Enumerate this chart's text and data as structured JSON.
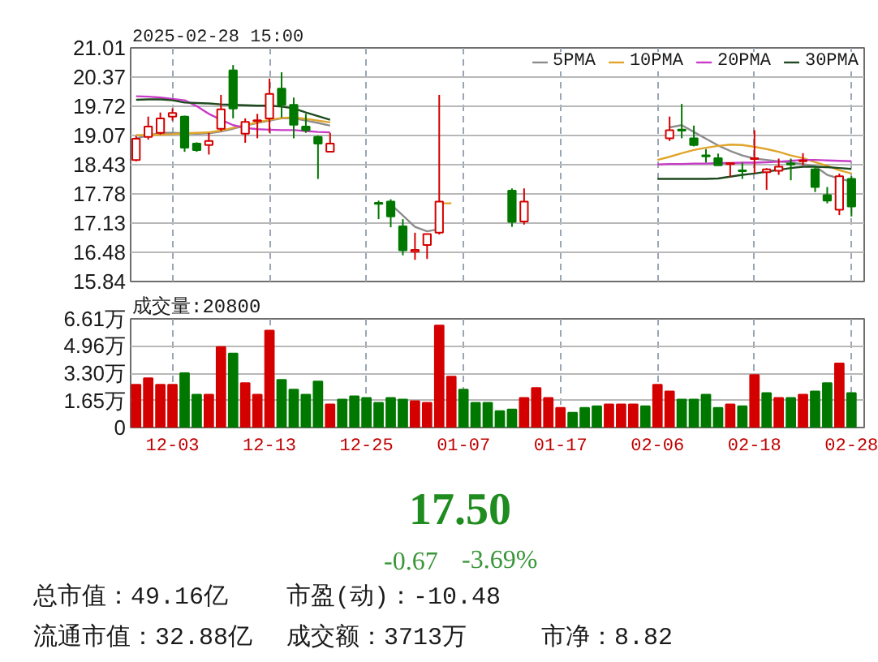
{
  "chart_data": [
    {
      "type": "candlestick",
      "title": "2025-02-28 15:00",
      "categories": [
        null,
        null,
        null,
        null,
        null,
        null,
        null,
        null,
        null,
        null,
        null,
        null,
        null,
        null,
        null,
        null,
        null,
        null,
        null,
        null,
        null,
        null,
        null,
        null,
        null,
        null,
        null,
        null,
        null,
        null,
        null,
        null,
        null,
        null,
        null,
        null,
        null,
        null,
        null,
        null,
        null,
        null,
        null,
        null,
        null,
        null,
        null,
        null,
        null,
        null,
        null,
        null,
        null,
        null,
        null,
        null,
        null,
        null,
        null,
        null
      ],
      "ohlc": [
        [
          18.53,
          19.06,
          18.5,
          19.0
        ],
        [
          19.04,
          19.49,
          18.98,
          19.27
        ],
        [
          19.13,
          19.58,
          19.09,
          19.45
        ],
        [
          19.49,
          19.67,
          19.4,
          19.57
        ],
        [
          19.49,
          19.51,
          18.71,
          18.8
        ],
        [
          18.89,
          18.92,
          18.71,
          18.75
        ],
        [
          18.86,
          19.13,
          18.65,
          18.95
        ],
        [
          19.22,
          19.97,
          19.17,
          19.65
        ],
        [
          20.51,
          20.63,
          19.45,
          19.67
        ],
        [
          19.11,
          19.45,
          18.91,
          19.37
        ],
        [
          19.39,
          19.55,
          19.01,
          19.41
        ],
        [
          19.45,
          20.33,
          19.13,
          19.99
        ],
        [
          20.11,
          20.47,
          19.47,
          19.75
        ],
        [
          19.75,
          19.91,
          19.01,
          19.31
        ],
        [
          19.27,
          19.55,
          19.13,
          19.19
        ],
        [
          19.04,
          19.07,
          18.11,
          18.89
        ],
        [
          18.71,
          19.13,
          18.71,
          18.89
        ],
        null,
        null,
        null,
        [
          17.58,
          17.63,
          17.22,
          17.56
        ],
        [
          17.61,
          17.66,
          17.04,
          17.28
        ],
        [
          17.06,
          17.22,
          16.42,
          16.53
        ],
        [
          16.5,
          16.92,
          16.32,
          16.54
        ],
        [
          16.65,
          16.89,
          16.34,
          16.89
        ],
        [
          16.92,
          19.97,
          16.88,
          17.61
        ],
        null,
        null,
        null,
        null,
        null,
        [
          17.85,
          17.9,
          17.05,
          17.16
        ],
        [
          17.17,
          17.9,
          17.1,
          17.61
        ],
        null,
        null,
        null,
        null,
        null,
        null,
        null,
        null,
        null,
        null,
        null,
        [
          19.01,
          19.49,
          18.95,
          19.19
        ],
        [
          19.2,
          19.77,
          19.01,
          19.18
        ],
        [
          19.01,
          19.29,
          18.83,
          18.86
        ],
        [
          18.63,
          18.77,
          18.47,
          18.61
        ],
        [
          18.57,
          18.67,
          18.41,
          18.41
        ],
        [
          18.44,
          18.47,
          18.15,
          18.46
        ],
        [
          18.3,
          18.47,
          18.11,
          18.28
        ],
        [
          18.55,
          19.19,
          18.23,
          18.57
        ],
        [
          18.26,
          18.35,
          17.87,
          18.32
        ],
        [
          18.29,
          18.56,
          18.2,
          18.38
        ],
        [
          18.45,
          18.56,
          18.08,
          18.43
        ],
        [
          18.5,
          18.68,
          18.41,
          18.52
        ],
        [
          18.32,
          18.39,
          17.82,
          17.93
        ],
        [
          17.75,
          17.93,
          17.57,
          17.63
        ],
        [
          17.43,
          18.23,
          17.31,
          18.17
        ],
        [
          18.11,
          18.17,
          17.28,
          17.5
        ]
      ],
      "colors": [
        "#d40000",
        "#d40000",
        "#d40000",
        "#d40000",
        "#007800",
        "#007800",
        "#d40000",
        "#d40000",
        "#007800",
        "#d40000",
        "#d40000",
        "#d40000",
        "#007800",
        "#007800",
        "#007800",
        "#007800",
        "#d40000",
        null,
        null,
        null,
        "#007800",
        "#007800",
        "#007800",
        "#d40000",
        "#d40000",
        "#d40000",
        null,
        null,
        null,
        null,
        null,
        "#007800",
        "#d40000",
        null,
        null,
        null,
        null,
        null,
        null,
        null,
        null,
        null,
        null,
        null,
        "#d40000",
        "#007800",
        "#007800",
        "#007800",
        "#007800",
        "#d40000",
        "#007800",
        "#d40000",
        "#d40000",
        "#d40000",
        "#007800",
        "#d40000",
        "#007800",
        "#007800",
        "#d40000",
        "#007800"
      ],
      "series": [
        {
          "name": "5PMA",
          "type": "line",
          "color": "#8c8c8c",
          "values": [
            19.01,
            19.07,
            19.13,
            19.13,
            19.12,
            19.11,
            19.12,
            19.16,
            19.22,
            19.29,
            19.35,
            19.4,
            19.45,
            19.45,
            19.4,
            19.35,
            19.29,
            null,
            null,
            null,
            null,
            17.55,
            17.3,
            17.05,
            16.95,
            17.0,
            null,
            null,
            null,
            null,
            null,
            null,
            null,
            null,
            null,
            null,
            null,
            null,
            null,
            null,
            null,
            null,
            null,
            null,
            19.25,
            19.3,
            19.15,
            19.0,
            18.85,
            18.73,
            18.63,
            18.56,
            18.53,
            18.5,
            18.47,
            18.44,
            18.39,
            18.2,
            18.12,
            18.05
          ]
        },
        {
          "name": "10PMA",
          "type": "line",
          "color": "#e0a52a",
          "values": [
            19.08,
            19.08,
            19.09,
            19.1,
            19.12,
            19.13,
            19.14,
            19.18,
            19.24,
            19.3,
            19.36,
            19.42,
            19.46,
            19.47,
            19.44,
            19.4,
            19.36,
            null,
            null,
            null,
            null,
            null,
            null,
            null,
            null,
            17.57,
            17.57,
            null,
            null,
            null,
            null,
            null,
            null,
            null,
            null,
            null,
            null,
            null,
            null,
            null,
            null,
            null,
            null,
            18.53,
            18.6,
            18.68,
            18.75,
            18.8,
            18.84,
            18.87,
            18.86,
            18.82,
            18.77,
            18.71,
            18.63,
            18.57,
            18.48,
            18.4,
            18.3,
            18.23
          ]
        },
        {
          "name": "20PMA",
          "type": "line",
          "color": "#c83cc8",
          "values": [
            19.94,
            19.93,
            19.91,
            19.88,
            19.85,
            19.72,
            19.55,
            19.42,
            19.3,
            19.24,
            19.21,
            19.2,
            19.19,
            19.19,
            19.17,
            19.15,
            19.14,
            null,
            null,
            null,
            null,
            null,
            null,
            null,
            null,
            null,
            null,
            null,
            null,
            null,
            null,
            null,
            null,
            null,
            null,
            null,
            null,
            null,
            null,
            null,
            null,
            null,
            null,
            18.43,
            18.44,
            18.44,
            18.45,
            18.45,
            18.46,
            18.46,
            18.47,
            18.47,
            18.48,
            18.49,
            18.51,
            18.53,
            18.53,
            18.52,
            18.51,
            18.5
          ]
        },
        {
          "name": "30PMA",
          "type": "line",
          "color": "#1f4a1f",
          "values": [
            19.86,
            19.87,
            19.87,
            19.85,
            19.8,
            19.79,
            19.78,
            19.76,
            19.75,
            19.74,
            19.73,
            19.73,
            19.71,
            19.67,
            19.58,
            19.5,
            19.42,
            null,
            null,
            null,
            null,
            null,
            null,
            null,
            null,
            null,
            null,
            null,
            null,
            null,
            null,
            null,
            null,
            null,
            null,
            null,
            null,
            null,
            null,
            null,
            null,
            null,
            null,
            18.11,
            18.11,
            18.11,
            18.11,
            18.11,
            18.12,
            18.16,
            18.2,
            18.23,
            18.27,
            18.31,
            18.35,
            18.38,
            18.38,
            18.37,
            18.35,
            18.33
          ]
        }
      ],
      "ylim": [
        15.84,
        21.01
      ],
      "yticks": [
        21.01,
        20.37,
        19.72,
        19.07,
        18.43,
        17.78,
        17.13,
        16.48,
        15.84
      ],
      "grid": true,
      "legend": "top right"
    },
    {
      "type": "bar",
      "title": "成交量:20800",
      "categories": [
        null,
        null,
        null,
        "12-03",
        null,
        null,
        null,
        null,
        null,
        null,
        null,
        "12-13",
        null,
        null,
        null,
        null,
        null,
        null,
        null,
        "12-25",
        null,
        null,
        null,
        null,
        null,
        null,
        null,
        "01-07",
        null,
        null,
        null,
        null,
        null,
        null,
        null,
        "01-17",
        null,
        null,
        null,
        null,
        null,
        null,
        null,
        "02-06",
        null,
        null,
        null,
        null,
        null,
        null,
        null,
        "02-18",
        null,
        null,
        null,
        null,
        null,
        null,
        null,
        "02-28"
      ],
      "values": [
        2.6,
        3.0,
        2.6,
        2.6,
        3.3,
        2.0,
        2.0,
        4.9,
        4.5,
        2.7,
        2.0,
        5.9,
        2.9,
        2.3,
        2.0,
        2.8,
        1.4,
        1.7,
        1.9,
        1.8,
        1.5,
        1.8,
        1.7,
        1.6,
        1.5,
        6.2,
        3.1,
        2.3,
        1.5,
        1.5,
        1.0,
        1.1,
        1.8,
        2.4,
        1.8,
        1.2,
        0.9,
        1.2,
        1.3,
        1.4,
        1.4,
        1.4,
        1.3,
        2.6,
        2.2,
        1.7,
        1.7,
        2.0,
        1.2,
        1.4,
        1.3,
        3.2,
        2.1,
        1.8,
        1.8,
        2.0,
        2.2,
        2.7,
        3.9,
        2.1
      ],
      "colors": [
        "#d40000",
        "#d40000",
        "#d40000",
        "#d40000",
        "#007800",
        "#007800",
        "#d40000",
        "#d40000",
        "#007800",
        "#d40000",
        "#d40000",
        "#d40000",
        "#007800",
        "#007800",
        "#007800",
        "#007800",
        "#d40000",
        "#007800",
        "#007800",
        "#007800",
        "#007800",
        "#007800",
        "#007800",
        "#d40000",
        "#d40000",
        "#d40000",
        "#d40000",
        "#007800",
        "#007800",
        "#007800",
        "#007800",
        "#007800",
        "#d40000",
        "#d40000",
        "#d40000",
        "#d40000",
        "#007800",
        "#007800",
        "#007800",
        "#d40000",
        "#d40000",
        "#d40000",
        "#007800",
        "#d40000",
        "#d40000",
        "#007800",
        "#007800",
        "#007800",
        "#007800",
        "#d40000",
        "#007800",
        "#d40000",
        "#007800",
        "#d40000",
        "#007800",
        "#d40000",
        "#007800",
        "#007800",
        "#d40000",
        "#007800"
      ],
      "ylim": [
        0,
        6.61
      ],
      "yticks": [
        {
          "value": 6.61,
          "label": "6.61万"
        },
        {
          "value": 4.96,
          "label": "4.96万"
        },
        {
          "value": 3.3,
          "label": "3.30万"
        },
        {
          "value": 1.65,
          "label": "1.65万"
        },
        0
      ],
      "grid": true
    },
    {
      "type": "other",
      "title": "17.50",
      "annotations": [
        "-0.67",
        "-3.69%",
        "总市值：49.16亿",
        "市盈(动)：-10.48",
        "流通市值：32.88亿",
        "成交额：3713万",
        "市净：8.82"
      ]
    }
  ]
}
